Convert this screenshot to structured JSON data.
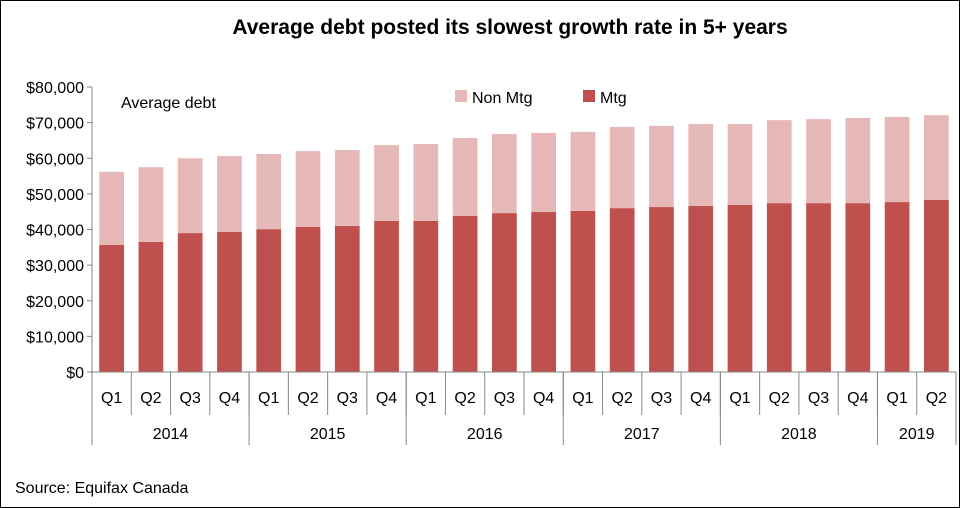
{
  "chart_data": {
    "type": "bar",
    "stacked": true,
    "title": "Average debt posted its slowest growth rate in 5+ years",
    "annotation": "Average debt",
    "source": "Source: Equifax Canada",
    "legend_position": "top",
    "grid": false,
    "ylim": [
      0,
      80000
    ],
    "y_ticks": [
      "$0",
      "$10,000",
      "$20,000",
      "$30,000",
      "$40,000",
      "$50,000",
      "$60,000",
      "$70,000",
      "$80,000"
    ],
    "categories": [
      "Q1",
      "Q2",
      "Q3",
      "Q4",
      "Q1",
      "Q2",
      "Q3",
      "Q4",
      "Q1",
      "Q2",
      "Q3",
      "Q4",
      "Q1",
      "Q2",
      "Q3",
      "Q4",
      "Q1",
      "Q2",
      "Q3",
      "Q4",
      "Q1",
      "Q2"
    ],
    "years": [
      {
        "label": "2014",
        "count": 4
      },
      {
        "label": "2015",
        "count": 4
      },
      {
        "label": "2016",
        "count": 4
      },
      {
        "label": "2017",
        "count": 4
      },
      {
        "label": "2018",
        "count": 4
      },
      {
        "label": "2019",
        "count": 2
      }
    ],
    "series": [
      {
        "name": "Mtg",
        "color": "#c0504d",
        "values": [
          35700,
          36500,
          39000,
          39300,
          40100,
          40700,
          41000,
          42400,
          42400,
          43800,
          44600,
          44900,
          45200,
          46000,
          46300,
          46600,
          46900,
          47400,
          47400,
          47400,
          47700,
          48300
        ]
      },
      {
        "name": "Non Mtg",
        "color": "#e6b9b8",
        "values": [
          20500,
          21000,
          21000,
          21300,
          21100,
          21300,
          21300,
          21300,
          21600,
          21900,
          22200,
          22200,
          22200,
          22800,
          22800,
          23000,
          22700,
          23300,
          23600,
          23900,
          23900,
          23800
        ]
      }
    ]
  }
}
